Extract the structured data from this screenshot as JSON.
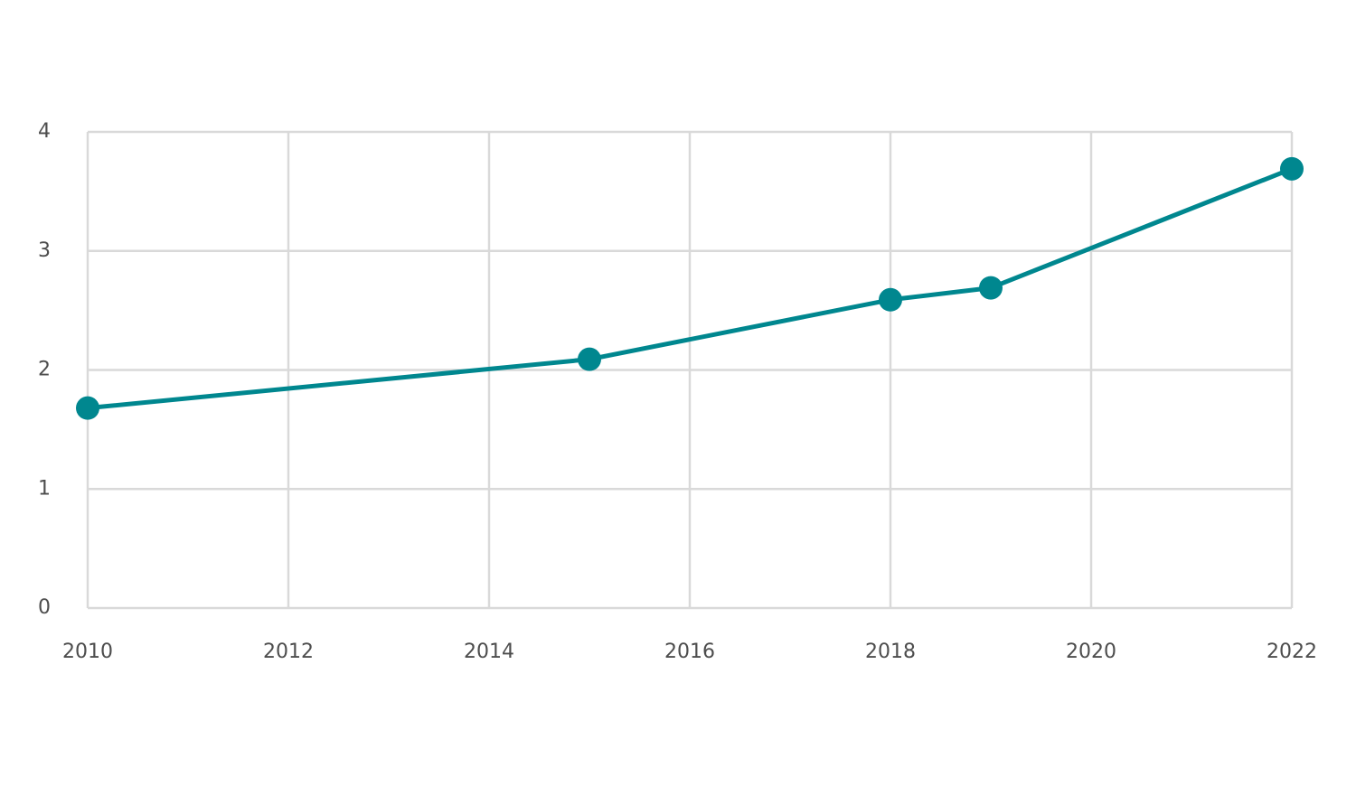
{
  "chart_data": {
    "type": "line",
    "title": "",
    "xlabel": "",
    "ylabel": "",
    "x": [
      2010,
      2015,
      2018,
      2019,
      2022
    ],
    "series": [
      {
        "values": [
          1.68,
          2.09,
          2.59,
          2.69,
          3.69
        ],
        "color": "#00878f"
      }
    ],
    "xlim": [
      2010,
      2022
    ],
    "ylim": [
      0,
      4
    ],
    "x_ticks": [
      "2010",
      "2012",
      "2014",
      "2016",
      "2018",
      "2020",
      "2022"
    ],
    "y_ticks": [
      "0",
      "1",
      "2",
      "3",
      "4"
    ],
    "grid": true,
    "legend": "none",
    "colors": {
      "grid": "#d9d9d9",
      "tick_text": "#4d4d4d",
      "line": "#00878f"
    }
  }
}
